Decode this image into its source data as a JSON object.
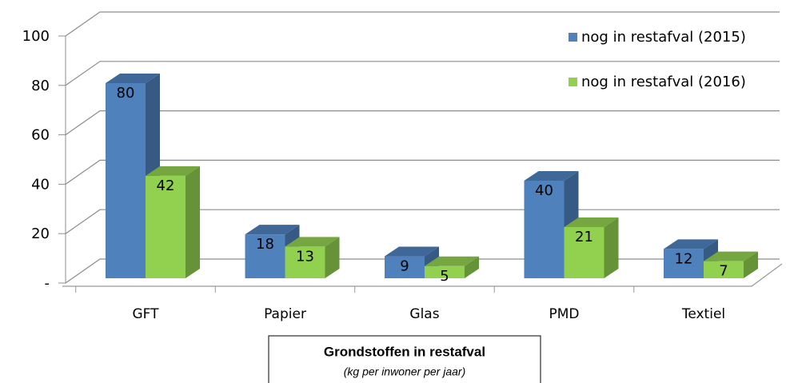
{
  "chart_data": {
    "type": "bar3d",
    "title": "Grondstoffen in restafval",
    "subtitle": "(kg per inwoner per jaar)",
    "categories": [
      "GFT",
      "Papier",
      "Glas",
      "PMD",
      "Textiel"
    ],
    "series": [
      {
        "name": "nog in restafval (2015)",
        "color": "#4f81bd",
        "values": [
          80,
          18,
          9,
          40,
          12
        ]
      },
      {
        "name": "nog in restafval (2016)",
        "color": "#92d050",
        "values": [
          42,
          13,
          5,
          21,
          7
        ]
      }
    ],
    "ylim": [
      0,
      100
    ],
    "yticks": [
      {
        "value": 0,
        "label": "-"
      },
      20,
      40,
      60,
      80,
      100
    ],
    "grid": true,
    "legend": "top-right"
  }
}
